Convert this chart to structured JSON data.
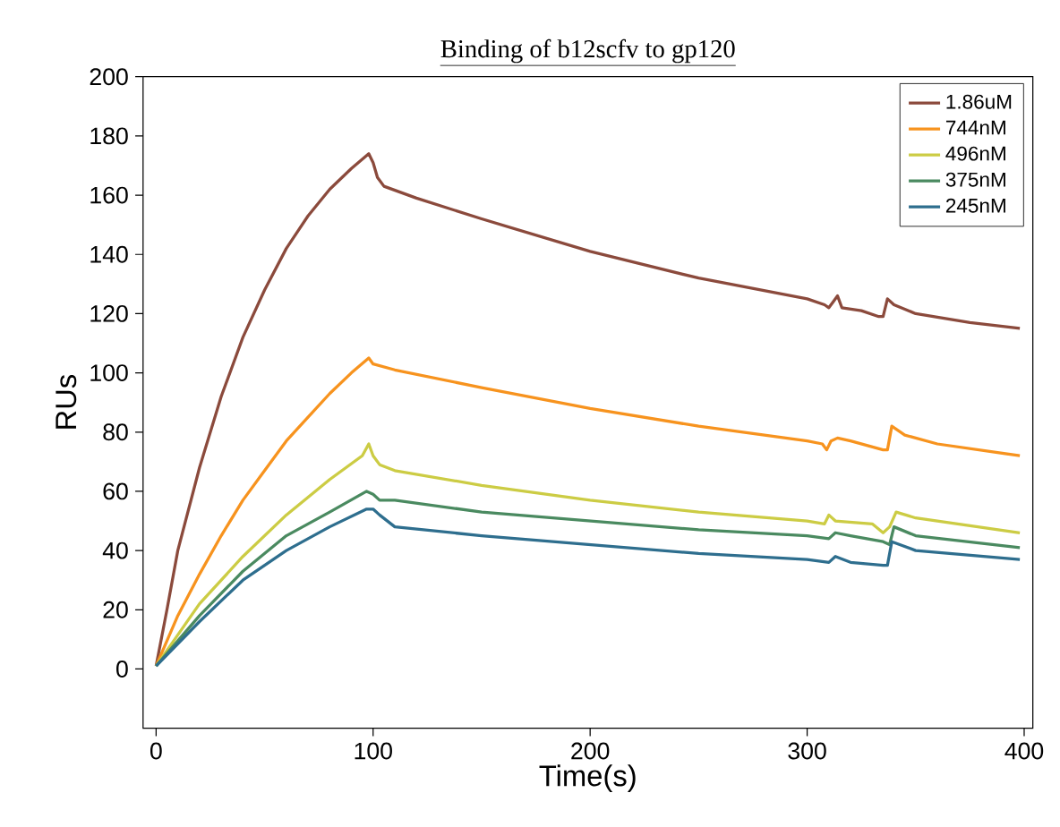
{
  "chart_data": {
    "type": "line",
    "title": "Binding of b12scfv to gp120",
    "xlabel": "Time(s)",
    "ylabel": "RUs",
    "xlim": [
      -6,
      404
    ],
    "ylim": [
      -20,
      200
    ],
    "xticks": [
      0,
      100,
      200,
      300,
      400
    ],
    "yticks": [
      0,
      20,
      40,
      60,
      80,
      100,
      120,
      140,
      160,
      180,
      200
    ],
    "legend": "top right",
    "grid": false,
    "series": [
      {
        "name": "1.86uM",
        "color": "#8b4a3c",
        "x": [
          0,
          5,
          10,
          20,
          30,
          40,
          50,
          60,
          70,
          80,
          90,
          98,
          100,
          102,
          105,
          120,
          150,
          200,
          250,
          300,
          308,
          310,
          312,
          314,
          316,
          325,
          333,
          335,
          337,
          340,
          350,
          375,
          398
        ],
        "values": [
          1,
          20,
          40,
          68,
          92,
          112,
          128,
          142,
          153,
          162,
          169,
          174,
          171,
          166,
          163,
          159,
          152,
          141,
          132,
          125,
          123,
          122,
          124,
          126,
          122,
          121,
          119,
          119,
          125,
          123,
          120,
          117,
          115
        ]
      },
      {
        "name": "744nM",
        "color": "#f7931e",
        "x": [
          0,
          10,
          20,
          30,
          40,
          50,
          60,
          70,
          80,
          90,
          98,
          100,
          110,
          150,
          200,
          250,
          300,
          307,
          309,
          311,
          314,
          320,
          335,
          337,
          339,
          345,
          360,
          398
        ],
        "values": [
          1,
          18,
          32,
          45,
          57,
          67,
          77,
          85,
          93,
          100,
          105,
          103,
          101,
          95,
          88,
          82,
          77,
          76,
          74,
          77,
          78,
          77,
          74,
          74,
          82,
          79,
          76,
          72
        ]
      },
      {
        "name": "496nM",
        "color": "#cccc44",
        "x": [
          0,
          20,
          40,
          60,
          80,
          95,
          98,
          100,
          103,
          110,
          150,
          200,
          250,
          300,
          308,
          310,
          313,
          330,
          335,
          338,
          341,
          350,
          398
        ],
        "values": [
          1,
          22,
          38,
          52,
          64,
          72,
          76,
          72,
          69,
          67,
          62,
          57,
          53,
          50,
          49,
          52,
          50,
          49,
          46,
          48,
          53,
          51,
          46
        ]
      },
      {
        "name": "375nM",
        "color": "#4a8a60",
        "x": [
          0,
          20,
          40,
          60,
          80,
          97,
          100,
          103,
          110,
          150,
          200,
          250,
          300,
          310,
          313,
          320,
          335,
          338,
          340,
          350,
          398
        ],
        "values": [
          1,
          18,
          33,
          45,
          53,
          60,
          59,
          57,
          57,
          53,
          50,
          47,
          45,
          44,
          46,
          45,
          43,
          42,
          48,
          45,
          41
        ]
      },
      {
        "name": "245nM",
        "color": "#2e6e8e",
        "x": [
          0,
          20,
          40,
          60,
          80,
          97,
          100,
          103,
          110,
          150,
          200,
          250,
          300,
          310,
          313,
          320,
          335,
          337,
          339,
          350,
          398
        ],
        "values": [
          1,
          16,
          30,
          40,
          48,
          54,
          54,
          52,
          48,
          45,
          42,
          39,
          37,
          36,
          38,
          36,
          35,
          35,
          43,
          40,
          37
        ]
      }
    ]
  }
}
